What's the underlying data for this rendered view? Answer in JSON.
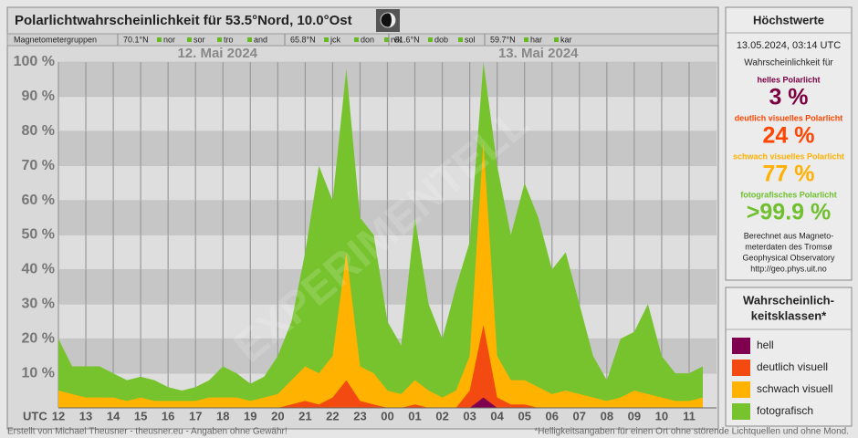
{
  "header": {
    "title": "Polarlichtwahrscheinlichkeit für 53.5°Nord, 10.0°Ost",
    "groups_label": "Magnetometergruppen",
    "groups": [
      {
        "lat": "70.1°N",
        "stations": [
          "nor",
          "sor",
          "tro",
          "and"
        ]
      },
      {
        "lat": "65.8°N",
        "stations": [
          "jck",
          "don",
          "rvk"
        ]
      },
      {
        "lat": "61.6°N",
        "stations": [
          "dob",
          "sol"
        ]
      },
      {
        "lat": "59.7°N",
        "stations": [
          "har",
          "kar"
        ]
      }
    ]
  },
  "chart_data": {
    "type": "area",
    "x_axis_label": "UTC",
    "dates": [
      "12. Mai 2024",
      "13. Mai 2024"
    ],
    "watermark": "EXPERIMENTELL",
    "xlim": [
      12,
      36
    ],
    "ylim": [
      0,
      100
    ],
    "xticks": [
      12,
      13,
      14,
      15,
      16,
      17,
      18,
      19,
      20,
      21,
      22,
      23,
      {
        "value": 24,
        "label": "00"
      },
      {
        "value": 25,
        "label": "01"
      },
      {
        "value": 26,
        "label": "02"
      },
      {
        "value": 27,
        "label": "03"
      },
      {
        "value": 28,
        "label": "04"
      },
      {
        "value": 29,
        "label": "05"
      },
      {
        "value": 30,
        "label": "06"
      },
      {
        "value": 31,
        "label": "07"
      },
      {
        "value": 32,
        "label": "08"
      },
      {
        "value": 33,
        "label": "09"
      },
      {
        "value": 34,
        "label": "10"
      },
      {
        "value": 35,
        "label": "11"
      }
    ],
    "yticks": [
      {
        "value": 10,
        "label": "10 %"
      },
      {
        "value": 20,
        "label": "20 %"
      },
      {
        "value": 30,
        "label": "30 %"
      },
      {
        "value": 40,
        "label": "40 %"
      },
      {
        "value": 50,
        "label": "50 %"
      },
      {
        "value": 60,
        "label": "60 %"
      },
      {
        "value": 70,
        "label": "70 %"
      },
      {
        "value": 80,
        "label": "80 %"
      },
      {
        "value": 90,
        "label": "90 %"
      },
      {
        "value": 100,
        "label": "100 %"
      }
    ],
    "x": [
      12,
      12.5,
      13,
      13.5,
      14,
      14.5,
      15,
      15.5,
      16,
      16.5,
      17,
      17.5,
      18,
      18.5,
      19,
      19.5,
      20,
      20.5,
      21,
      21.5,
      22,
      22.5,
      23,
      23.5,
      24,
      24.5,
      25,
      25.5,
      26,
      26.5,
      27,
      27.5,
      28,
      28.5,
      29,
      29.5,
      30,
      30.5,
      31,
      31.5,
      32,
      32.5,
      33,
      33.5,
      34,
      34.5,
      35,
      35.5
    ],
    "series": [
      {
        "name": "fotografisch",
        "color": "#77c32e",
        "values": [
          20,
          12,
          12,
          12,
          10,
          8,
          9,
          8,
          6,
          5,
          6,
          8,
          12,
          10,
          7,
          9,
          15,
          25,
          45,
          70,
          60,
          98,
          55,
          50,
          25,
          18,
          55,
          30,
          20,
          35,
          48,
          100,
          70,
          50,
          65,
          55,
          40,
          45,
          30,
          15,
          8,
          20,
          22,
          30,
          15,
          10,
          10,
          12
        ]
      },
      {
        "name": "schwach visuell",
        "color": "#ffb300",
        "values": [
          5,
          4,
          3,
          3,
          3,
          2,
          3,
          2,
          2,
          2,
          2,
          3,
          3,
          3,
          2,
          3,
          4,
          8,
          12,
          10,
          15,
          45,
          12,
          10,
          5,
          4,
          8,
          5,
          3,
          5,
          15,
          77,
          15,
          8,
          8,
          6,
          4,
          5,
          4,
          3,
          2,
          3,
          5,
          4,
          3,
          2,
          2,
          3
        ]
      },
      {
        "name": "deutlich visuell",
        "color": "#f24a10",
        "values": [
          0,
          0,
          0,
          0,
          0,
          0,
          0,
          0,
          0,
          0,
          0,
          0,
          0,
          0,
          0,
          0,
          0,
          1,
          2,
          1,
          3,
          8,
          2,
          1,
          0,
          0,
          1,
          0,
          0,
          0,
          5,
          24,
          3,
          1,
          1,
          0,
          0,
          0,
          0,
          0,
          0,
          0,
          0,
          0,
          0,
          0,
          0,
          0
        ]
      },
      {
        "name": "hell",
        "color": "#800050",
        "values": [
          0,
          0,
          0,
          0,
          0,
          0,
          0,
          0,
          0,
          0,
          0,
          0,
          0,
          0,
          0,
          0,
          0,
          0,
          0,
          0,
          0,
          0,
          0,
          0,
          0,
          0,
          0,
          0,
          0,
          0,
          0,
          3,
          0,
          0,
          0,
          0,
          0,
          0,
          0,
          0,
          0,
          0,
          0,
          0,
          0,
          0,
          0,
          0
        ]
      }
    ]
  },
  "panel": {
    "title": "Höchstwerte",
    "time": "13.05.2024, 03:14 UTC",
    "intro": "Wahrscheinlichkeit für",
    "maxima": [
      {
        "name": "helles Polarlicht",
        "value": "3 %"
      },
      {
        "name": "deutlich visuelles Polarlicht",
        "value": "24 %"
      },
      {
        "name": "schwach visuelles Polarlicht",
        "value": "77 %"
      },
      {
        "name": "fotografisches Polarlicht",
        "value": ">99.9 %"
      }
    ],
    "source": [
      "Berechnet aus Magneto-",
      "meterdaten des Tromsø",
      "Geophysical Observatory",
      "http://geo.phys.uit.no"
    ],
    "legend_title": [
      "Wahrscheinlich-",
      "keitsklassen*"
    ]
  },
  "footer": {
    "left": "Erstellt von Michael Theusner - theusner.eu - Angaben ohne Gewähr!",
    "right": "*Helligkeitsangaben für einen Ort ohne störende Lichtquellen und ohne Mond."
  }
}
